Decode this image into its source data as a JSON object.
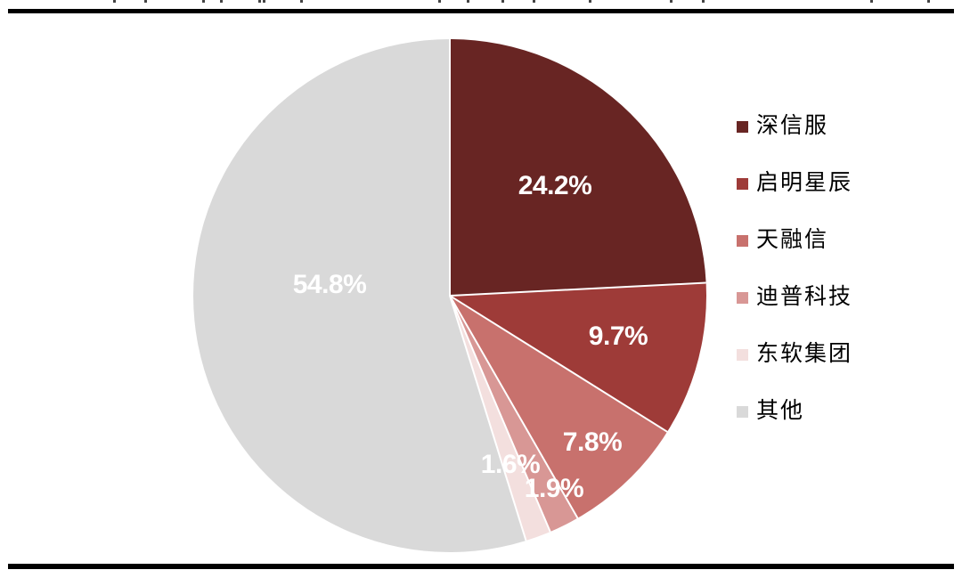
{
  "chart_data": {
    "type": "pie",
    "title": "",
    "categories": [
      "深信服",
      "启明星辰",
      "天融信",
      "迪普科技",
      "东软集团",
      "其他"
    ],
    "values": [
      24.2,
      9.7,
      7.8,
      1.9,
      1.6,
      54.8
    ],
    "slice_labels": [
      "24.2%",
      "9.7%",
      "7.8%",
      "1.9%",
      "1.6%",
      "54.8%"
    ],
    "colors": [
      "#682523",
      "#9E3B38",
      "#C8716D",
      "#D89795",
      "#F3DFDE",
      "#D9D9D9"
    ],
    "start_angle_deg": 0,
    "direction": "clockwise",
    "legend_position": "right",
    "slice_label_color": "#FFFFFF",
    "slice_border_color": "#FFFFFF"
  },
  "frame": {
    "rule_color": "#000000",
    "background_color": "#FFFFFF"
  }
}
